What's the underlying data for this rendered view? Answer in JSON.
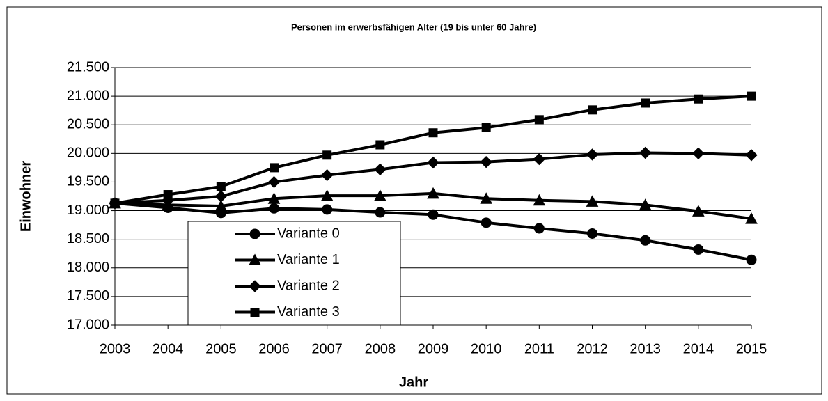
{
  "chart_data": {
    "type": "line",
    "title": "Personen im erwerbsfähigen Alter (19 bis unter 60 Jahre)",
    "x_label": "Jahr",
    "y_label": "Einwohner",
    "categories": [
      "2003",
      "2004",
      "2005",
      "2006",
      "2007",
      "2008",
      "2009",
      "2010",
      "2011",
      "2012",
      "2013",
      "2014",
      "2015"
    ],
    "series": [
      {
        "name": "Variante 0",
        "color": "#000000",
        "marker": "circle",
        "values": [
          19130,
          19050,
          18960,
          19040,
          19020,
          18970,
          18930,
          18790,
          18690,
          18600,
          18480,
          18320,
          18140
        ]
      },
      {
        "name": "Variante 1",
        "color": "#000000",
        "marker": "triangle",
        "values": [
          19130,
          19100,
          19080,
          19210,
          19260,
          19260,
          19300,
          19210,
          19180,
          19160,
          19100,
          18990,
          18860
        ]
      },
      {
        "name": "Variante 2",
        "color": "#000000",
        "marker": "diamond",
        "values": [
          19130,
          19180,
          19250,
          19500,
          19620,
          19720,
          19840,
          19850,
          19900,
          19980,
          20010,
          20000,
          19970
        ]
      },
      {
        "name": "Variante 3",
        "color": "#000000",
        "marker": "square",
        "values": [
          19130,
          19280,
          19420,
          19750,
          19970,
          20150,
          20360,
          20450,
          20590,
          20760,
          20880,
          20950,
          21000
        ]
      }
    ],
    "ylim": [
      17000,
      21500
    ],
    "yticks": [
      {
        "value": 17000,
        "label": "17.000"
      },
      {
        "value": 17500,
        "label": "17.500"
      },
      {
        "value": 18000,
        "label": "18.000"
      },
      {
        "value": 18500,
        "label": "18.500"
      },
      {
        "value": 19000,
        "label": "19.000"
      },
      {
        "value": 19500,
        "label": "19.500"
      },
      {
        "value": 20000,
        "label": "20.000"
      },
      {
        "value": 20500,
        "label": "20.500"
      },
      {
        "value": 21000,
        "label": "21.000"
      },
      {
        "value": 21500,
        "label": "21.500"
      }
    ],
    "grid": true,
    "legend": "lower left"
  }
}
